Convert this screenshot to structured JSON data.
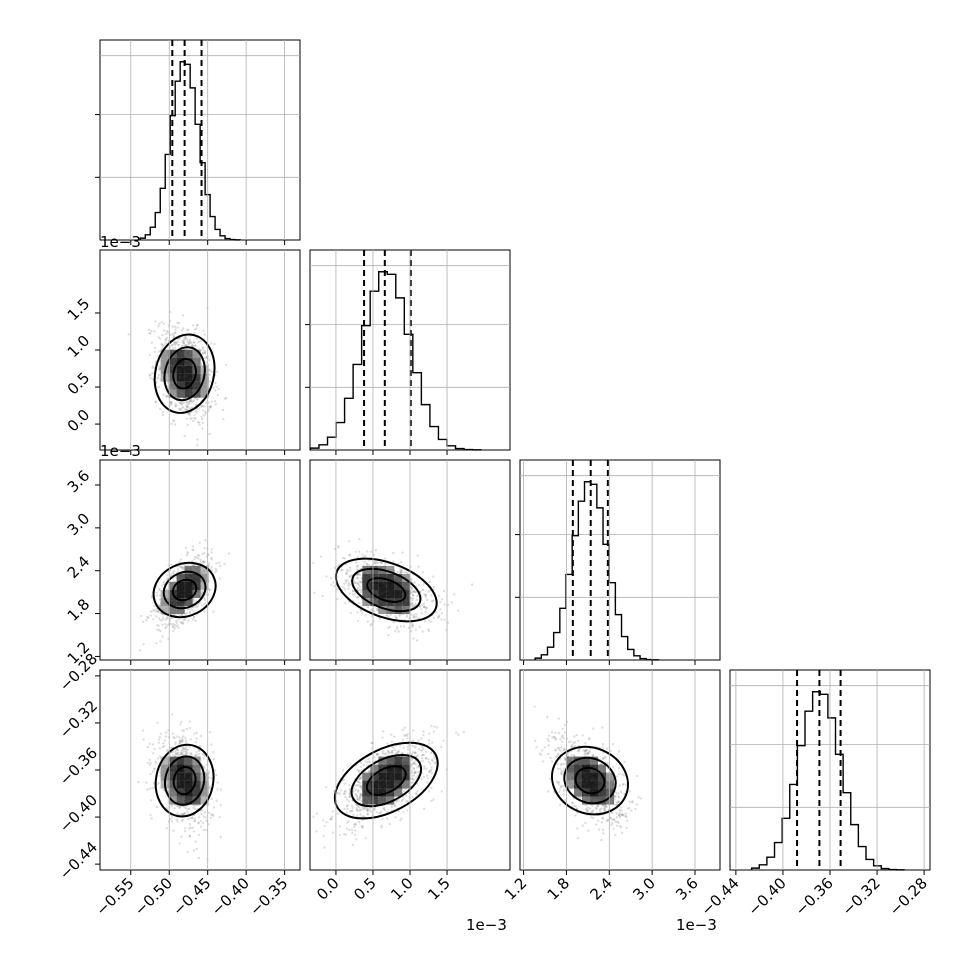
{
  "chart_data": {
    "type": "corner",
    "parameters": [
      {
        "key": "p1",
        "range": [
          -0.59,
          -0.33
        ],
        "ticks": [
          -0.55,
          -0.5,
          -0.45,
          -0.4,
          -0.35
        ],
        "tick_labels": [
          "−0.55",
          "−0.50",
          "−0.45",
          "−0.40",
          "−0.35"
        ],
        "multiplier": "",
        "quantiles": [
          -0.496,
          -0.48,
          -0.458
        ],
        "mean": -0.48,
        "sd": 0.018
      },
      {
        "key": "p2",
        "range": [
          -0.00035,
          0.00235
        ],
        "ticks": [
          0.0,
          0.0005,
          0.001,
          0.0015
        ],
        "tick_labels": [
          "0.0",
          "0.5",
          "1.0",
          "1.5"
        ],
        "multiplier": "1e−3",
        "quantiles": [
          0.00038,
          0.00066,
          0.00101
        ],
        "mean": 0.00068,
        "sd": 0.00032
      },
      {
        "key": "p3",
        "range": [
          0.00115,
          0.00395
        ],
        "ticks": [
          0.0012,
          0.0018,
          0.0024,
          0.003,
          0.0036
        ],
        "tick_labels": [
          "1.2",
          "1.8",
          "2.4",
          "3.0",
          "3.6"
        ],
        "multiplier": "1e−3",
        "quantiles": [
          0.00189,
          0.00214,
          0.00238
        ],
        "mean": 0.00213,
        "sd": 0.00024
      },
      {
        "key": "p4",
        "range": [
          -0.445,
          -0.275
        ],
        "ticks": [
          -0.44,
          -0.4,
          -0.36,
          -0.32,
          -0.28
        ],
        "tick_labels": [
          "−0.44",
          "−0.40",
          "−0.36",
          "−0.32",
          "−0.28"
        ],
        "multiplier": "",
        "quantiles": [
          -0.388,
          -0.369,
          -0.351
        ],
        "mean": -0.369,
        "sd": 0.018
      }
    ],
    "correlations": {
      "1-0": -0.3,
      "2-0": 0.55,
      "2-1": -0.45,
      "3-0": -0.25,
      "3-1": 0.62,
      "3-2": -0.5
    },
    "contour_levels": [
      "0.5",
      "1.0",
      "1.5",
      "2.0"
    ],
    "grid": true
  }
}
